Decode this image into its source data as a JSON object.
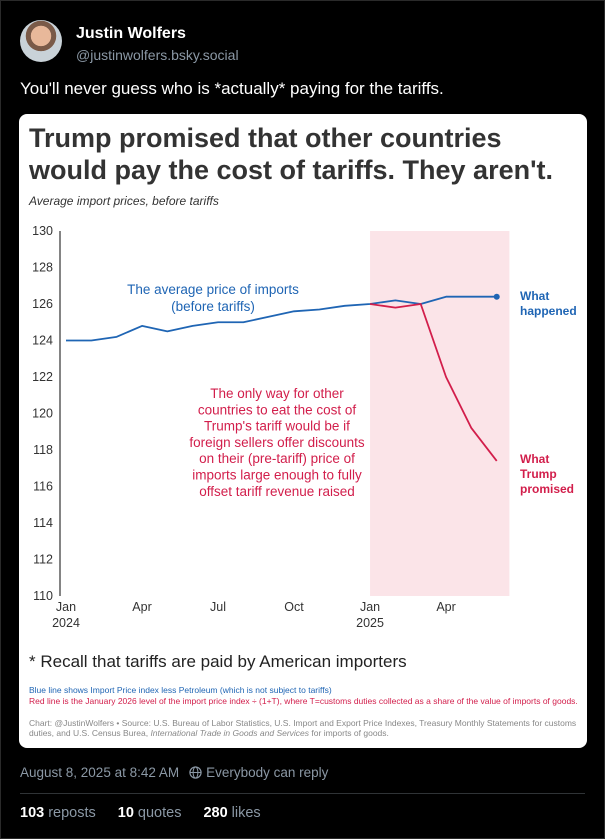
{
  "author": {
    "name": "Justin Wolfers",
    "handle": "@justinwolfers.bsky.social"
  },
  "post_text": "You'll never guess who is *actually* paying for the tariffs.",
  "card": {
    "title": "Trump promised that other countries would pay the cost of tariffs. They aren't.",
    "subtitle": "Average import prices, before tariffs",
    "footnote": "* Recall that tariffs are paid by American importers",
    "note_blue": "Blue line shows Import Price index less Petroleum (which is not subject to tariffs)",
    "note_red": "Red line is the January 2026 level of the import price index ÷ (1+T), where T=customs duties collected as a share of the value of imports of goods.",
    "note_source_prefix": "Chart: @JustinWolfers • Source: U.S. Bureau of Labor Statistics, U.S. Import and Export Price Indexes, Treasury Monthly Statements for customs duties, and U.S. Census Burea, ",
    "note_source_italic": "International Trade in Goods and Services",
    "note_source_suffix": " for imports of goods."
  },
  "chart_data": {
    "type": "line",
    "title": "Trump promised that other countries would pay the cost of tariffs. They aren't.",
    "subtitle": "Average import prices, before tariffs",
    "ylim": [
      110,
      130
    ],
    "yticks": [
      110,
      112,
      114,
      116,
      118,
      120,
      122,
      124,
      126,
      128,
      130
    ],
    "xticks": [
      {
        "label": "Jan",
        "sub": "2024",
        "x": 0
      },
      {
        "label": "Apr",
        "sub": "",
        "x": 3
      },
      {
        "label": "Jul",
        "sub": "",
        "x": 6
      },
      {
        "label": "Oct",
        "sub": "",
        "x": 9
      },
      {
        "label": "Jan",
        "sub": "2025",
        "x": 12
      },
      {
        "label": "Apr",
        "sub": "",
        "x": 15
      }
    ],
    "xlim": [
      0,
      17.8
    ],
    "shade": [
      12,
      17.5
    ],
    "series": [
      {
        "name": "What happened",
        "color": "#1f65b4",
        "x": [
          0,
          1,
          2,
          3,
          4,
          5,
          6,
          7,
          8,
          9,
          10,
          11,
          12,
          13,
          14,
          15,
          16,
          17
        ],
        "values": [
          124,
          124,
          124.2,
          124.8,
          124.5,
          124.8,
          125,
          125,
          125.3,
          125.6,
          125.7,
          125.9,
          126,
          126.2,
          126,
          126.4,
          126.4,
          126.4
        ]
      },
      {
        "name": "What Trump promised",
        "color": "#d21e4b",
        "x": [
          12,
          13,
          14,
          15,
          16,
          17
        ],
        "values": [
          126,
          125.8,
          126,
          122,
          119.2,
          117.4
        ]
      }
    ],
    "labels": {
      "blue_end": [
        "What",
        "happened"
      ],
      "red_end": [
        "What",
        "Trump",
        "promised"
      ],
      "blue_annotation": [
        "The average price of imports",
        "(before tariffs)"
      ],
      "red_annotation": [
        "The only way for other",
        "countries to eat the cost of",
        "Trump's tariff would be if",
        "foreign sellers offer discounts",
        "on their (pre-tariff) price of",
        "imports large enough to fully",
        "offset tariff revenue raised"
      ]
    }
  },
  "meta": {
    "timestamp": "August 8, 2025 at 8:42 AM",
    "reply_setting": "Everybody can reply"
  },
  "stats": {
    "reposts": "103",
    "reposts_label": "reposts",
    "quotes": "10",
    "quotes_label": "quotes",
    "likes": "280",
    "likes_label": "likes"
  }
}
